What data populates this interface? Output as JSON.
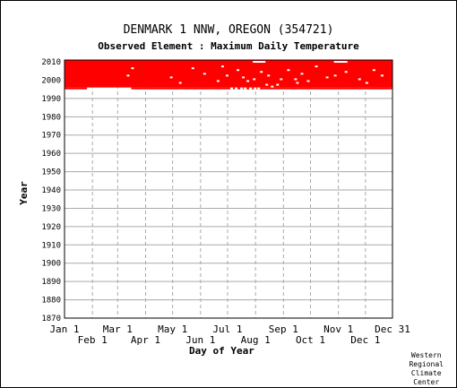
{
  "header": {
    "title": "DENMARK 1 NNW, OREGON   (354721)",
    "subtitle": "Observed Element : Maximum Daily Temperature"
  },
  "credit": [
    "Western",
    "Regional",
    "Climate",
    "Center"
  ],
  "colors": {
    "data": "#ff0000",
    "grid": "#aaaaaa",
    "axis": "#000000"
  },
  "chart_data": {
    "type": "heatmap",
    "title": "DENMARK 1 NNW, OREGON   (354721)",
    "subtitle": "Observed Element : Maximum Daily Temperature",
    "xlabel": "Day of Year",
    "ylabel": "Year",
    "x_ticks_top_row": [
      "Jan 1",
      "Mar 1",
      "May 1",
      "Jul 1",
      "Sep 1",
      "Nov 1",
      "Dec 31"
    ],
    "x_ticks_bottom_row": [
      "Feb 1",
      "Apr 1",
      "Jun 1",
      "Aug 1",
      "Oct 1",
      "Dec 1"
    ],
    "x_tick_days": [
      1,
      32,
      60,
      91,
      121,
      152,
      182,
      213,
      244,
      274,
      305,
      335,
      365
    ],
    "y_ticks": [
      2010,
      2000,
      1990,
      1980,
      1970,
      1960,
      1950,
      1940,
      1930,
      1920,
      1910,
      1900,
      1890,
      1880,
      1870
    ],
    "xlim": [
      1,
      365
    ],
    "ylim": [
      1870,
      2011
    ],
    "grid": true,
    "legend": "none",
    "series": [
      {
        "start_year": 1996,
        "end_year": 2011,
        "start_day": 1,
        "end_day": 365
      },
      {
        "start_year": 1995,
        "end_year": 1996,
        "start_day": 1,
        "end_day": 26
      },
      {
        "start_year": 1995,
        "end_year": 1996,
        "start_day": 75,
        "end_day": 365
      }
    ],
    "missing_points": [
      [
        75,
        2007
      ],
      [
        70,
        2003
      ],
      [
        142,
        2007
      ],
      [
        155,
        2004
      ],
      [
        180,
        2003
      ],
      [
        192,
        2006
      ],
      [
        198,
        2002
      ],
      [
        203,
        2000
      ],
      [
        210,
        2001
      ],
      [
        218,
        2005
      ],
      [
        224,
        1998
      ],
      [
        230,
        1997
      ],
      [
        185,
        1996
      ],
      [
        190,
        1996
      ],
      [
        196,
        1996
      ],
      [
        200,
        1996
      ],
      [
        206,
        1996
      ],
      [
        211,
        1996
      ],
      [
        215,
        1996
      ],
      [
        226,
        2003
      ],
      [
        236,
        1998
      ],
      [
        248,
        2006
      ],
      [
        256,
        2001
      ],
      [
        263,
        2004
      ],
      [
        270,
        2000
      ],
      [
        279,
        2008
      ],
      [
        291,
        2002
      ],
      [
        300,
        2003
      ],
      [
        312,
        2005
      ],
      [
        327,
        2001
      ],
      [
        335,
        1999
      ],
      [
        343,
        2006
      ],
      [
        352,
        2003
      ],
      [
        118,
        2002
      ],
      [
        128,
        1999
      ],
      [
        170,
        2000
      ],
      [
        175,
        2008
      ],
      [
        240,
        2001
      ],
      [
        258,
        1999
      ]
    ],
    "missing_segments": [
      [
        210,
        224,
        2010.5
      ],
      [
        300,
        315,
        2010.5
      ]
    ]
  }
}
